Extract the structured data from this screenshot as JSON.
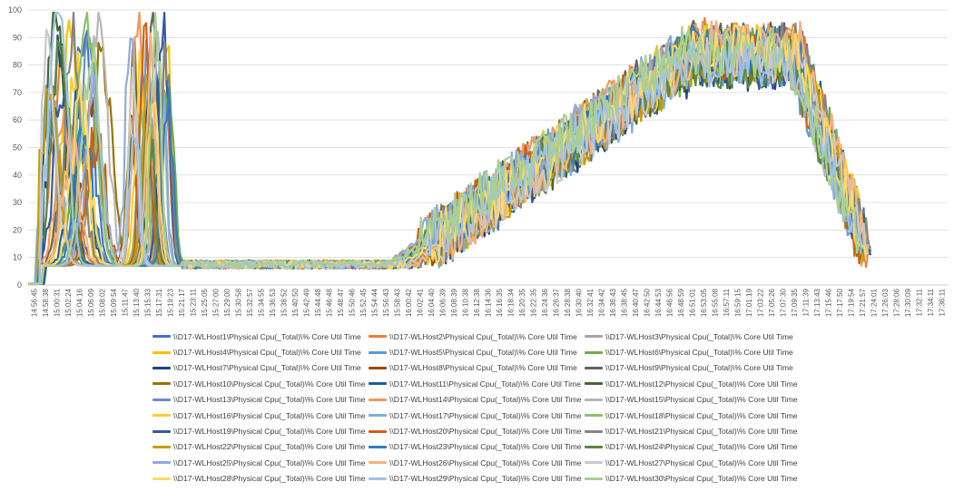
{
  "colors": {
    "grid": "#d9d9d9",
    "axis": "#bfbfbf",
    "tick_text": "#595959",
    "palette": [
      "#4472c4",
      "#ed7d31",
      "#a5a5a5",
      "#ffc000",
      "#5b9bd5",
      "#70ad47",
      "#264478",
      "#9e480e",
      "#636363",
      "#997300",
      "#255e91",
      "#43682b",
      "#698ed0",
      "#f1975a",
      "#b7b7b7",
      "#ffcd33",
      "#7cafdd",
      "#8cc168",
      "#335aa1",
      "#d26012",
      "#848484",
      "#cc9a00",
      "#327dc2",
      "#5a8a39",
      "#8faadc",
      "#f4b183",
      "#c9c9c9",
      "#ffd966",
      "#9dc3e6",
      "#a9d18e"
    ]
  },
  "chart_data": {
    "type": "line",
    "title": "",
    "xlabel": "",
    "ylabel": "",
    "ylim": [
      0,
      100
    ],
    "yticks": [
      0,
      10,
      20,
      30,
      40,
      50,
      60,
      70,
      80,
      90,
      100
    ],
    "grid": true,
    "legend_position": "bottom",
    "x_tick_labels": [
      "14:56:45",
      "14:58:38",
      "15:00:31",
      "15:02:24",
      "15:04:16",
      "15:06:09",
      "15:08:02",
      "15:09:54",
      "15:11:47",
      "15:13:40",
      "15:15:33",
      "15:17:31",
      "15:19:23",
      "15:21:17",
      "15:23:11",
      "15:25:05",
      "15:27:00",
      "15:29:00",
      "15:30:58",
      "15:32:57",
      "15:34:55",
      "15:36:53",
      "15:38:52",
      "15:40:50",
      "15:42:49",
      "15:44:48",
      "15:46:48",
      "15:48:47",
      "15:50:46",
      "15:52:45",
      "15:54:44",
      "15:56:43",
      "15:58:43",
      "16:00:42",
      "16:02:41",
      "16:04:40",
      "16:06:39",
      "16:08:39",
      "16:10:38",
      "16:12:38",
      "16:14:36",
      "16:16:35",
      "16:18:34",
      "16:20:35",
      "16:22:35",
      "16:24:36",
      "16:26:37",
      "16:28:38",
      "16:30:40",
      "16:32:41",
      "16:34:42",
      "16:36:43",
      "16:38:45",
      "16:40:47",
      "16:42:50",
      "16:44:53",
      "16:46:56",
      "16:48:59",
      "16:51:01",
      "16:53:05",
      "16:55:08",
      "16:57:11",
      "16:59:15",
      "17:01:19",
      "17:03:22",
      "17:05:26",
      "17:07:30",
      "17:09:35",
      "17:11:39",
      "17:13:43",
      "17:15:46",
      "17:17:50",
      "17:19:54",
      "17:21:57",
      "17:24:01",
      "17:26:03",
      "17:28:06",
      "17:30:09",
      "17:32:11",
      "17:34:11",
      "17:36:11"
    ],
    "profile": {
      "description_points_time_index": [
        0,
        2,
        3,
        5,
        7,
        9,
        11,
        12,
        14,
        15,
        33,
        34,
        35,
        37,
        40,
        45,
        50,
        55,
        58,
        60,
        65,
        68,
        69,
        70,
        71,
        72,
        73,
        74,
        80
      ],
      "approx_cpu_percent": [
        0,
        0,
        50,
        40,
        70,
        10,
        85,
        10,
        8,
        8,
        8,
        15,
        25,
        30,
        40,
        50,
        62,
        75,
        85,
        88,
        85,
        80,
        68,
        45,
        30,
        20,
        12,
        10,
        null
      ]
    },
    "series": [
      {
        "name": "\\\\D17-WLHost1\\Physical Cpu(_Total)\\% Core Util Time"
      },
      {
        "name": "\\\\D17-WLHost2\\Physical Cpu(_Total)\\% Core Util Time"
      },
      {
        "name": "\\\\D17-WLHost3\\Physical Cpu(_Total)\\% Core Util Time"
      },
      {
        "name": "\\\\D17-WLHost4\\Physical Cpu(_Total)\\% Core Util Time"
      },
      {
        "name": "\\\\D17-WLHost5\\Physical Cpu(_Total)\\% Core Util Time"
      },
      {
        "name": "\\\\D17-WLHost6\\Physical Cpu(_Total)\\% Core Util Time"
      },
      {
        "name": "\\\\D17-WLHost7\\Physical Cpu(_Total)\\% Core Util Time"
      },
      {
        "name": "\\\\D17-WLHost8\\Physical Cpu(_Total)\\% Core Util Time"
      },
      {
        "name": "\\\\D17-WLHost9\\Physical Cpu(_Total)\\% Core Util Time"
      },
      {
        "name": "\\\\D17-WLHost10\\Physical Cpu(_Total)\\% Core Util Time"
      },
      {
        "name": "\\\\D17-WLHost11\\Physical Cpu(_Total)\\% Core Util Time"
      },
      {
        "name": "\\\\D17-WLHost12\\Physical Cpu(_Total)\\% Core Util Time"
      },
      {
        "name": "\\\\D17-WLHost13\\Physical Cpu(_Total)\\% Core Util Time"
      },
      {
        "name": "\\\\D17-WLHost14\\Physical Cpu(_Total)\\% Core Util Time"
      },
      {
        "name": "\\\\D17-WLHost15\\Physical Cpu(_Total)\\% Core Util Time"
      },
      {
        "name": "\\\\D17-WLHost16\\Physical Cpu(_Total)\\% Core Util Time"
      },
      {
        "name": "\\\\D17-WLHost17\\Physical Cpu(_Total)\\% Core Util Time"
      },
      {
        "name": "\\\\D17-WLHost18\\Physical Cpu(_Total)\\% Core Util Time"
      },
      {
        "name": "\\\\D17-WLHost19\\Physical Cpu(_Total)\\% Core Util Time"
      },
      {
        "name": "\\\\D17-WLHost20\\Physical Cpu(_Total)\\% Core Util Time"
      },
      {
        "name": "\\\\D17-WLHost21\\Physical Cpu(_Total)\\% Core Util Time"
      },
      {
        "name": "\\\\D17-WLHost22\\Physical Cpu(_Total)\\% Core Util Time"
      },
      {
        "name": "\\\\D17-WLHost23\\Physical Cpu(_Total)\\% Core Util Time"
      },
      {
        "name": "\\\\D17-WLHost24\\Physical Cpu(_Total)\\% Core Util Time"
      },
      {
        "name": "\\\\D17-WLHost25\\Physical Cpu(_Total)\\% Core Util Time"
      },
      {
        "name": "\\\\D17-WLHost26\\Physical Cpu(_Total)\\% Core Util Time"
      },
      {
        "name": "\\\\D17-WLHost27\\Physical Cpu(_Total)\\% Core Util Time"
      },
      {
        "name": "\\\\D17-WLHost28\\Physical Cpu(_Total)\\% Core Util Time"
      },
      {
        "name": "\\\\D17-WLHost29\\Physical Cpu(_Total)\\% Core Util Time"
      },
      {
        "name": "\\\\D17-WLHost30\\Physical Cpu(_Total)\\% Core Util Time"
      }
    ]
  }
}
